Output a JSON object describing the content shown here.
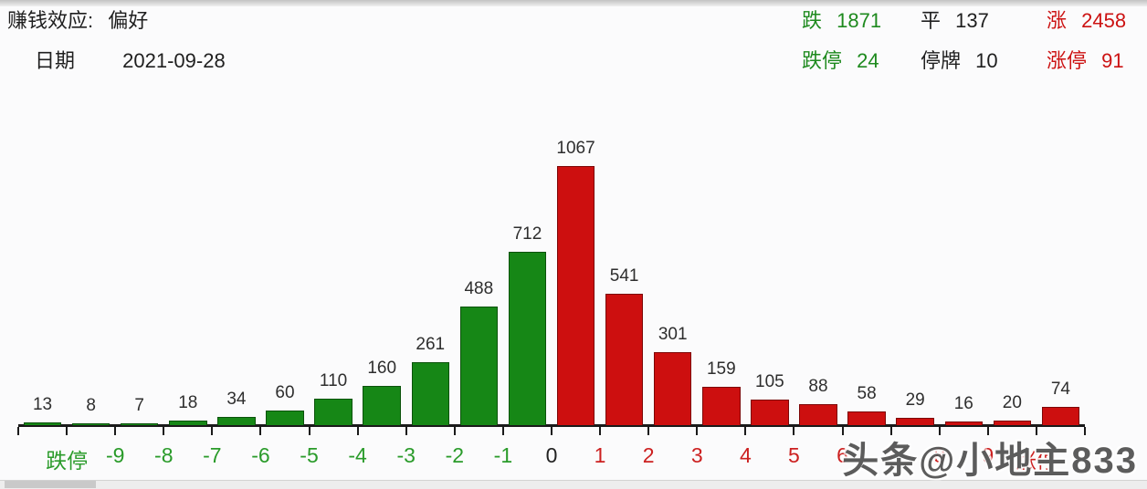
{
  "header": {
    "effect_label": "赚钱效应:",
    "effect_value": "偏好",
    "date_label": "日期",
    "date_value": "2021-09-28",
    "stats": [
      {
        "label": "跌",
        "value": "1871",
        "color": "green"
      },
      {
        "label": "平",
        "value": "137",
        "color": "black"
      },
      {
        "label": "涨",
        "value": "2458",
        "color": "red"
      },
      {
        "label": "跌停",
        "value": "24",
        "color": "green"
      },
      {
        "label": "停牌",
        "value": "10",
        "color": "black"
      },
      {
        "label": "涨停",
        "value": "91",
        "color": "red"
      }
    ]
  },
  "chart_data": {
    "type": "bar",
    "title": "",
    "xlabel": "",
    "ylabel": "",
    "ylim": [
      0,
      1100
    ],
    "grid": false,
    "values": [
      13,
      8,
      7,
      18,
      34,
      60,
      110,
      160,
      261,
      488,
      712,
      1067,
      541,
      301,
      159,
      105,
      88,
      58,
      29,
      16,
      20,
      74
    ],
    "down_bar_count": 11,
    "boundary_labels": [
      "跌停",
      "-9",
      "-8",
      "-7",
      "-6",
      "-5",
      "-4",
      "-3",
      "-2",
      "-1",
      "0",
      "1",
      "2",
      "3",
      "4",
      "5",
      "6",
      "7",
      "8",
      "9",
      "涨停"
    ],
    "colors": {
      "down_bar": "#168716",
      "up_bar": "#cd0f0f",
      "down_label": "#2a9b2a",
      "up_label": "#cc2020",
      "zero_label": "#222222",
      "value_label": "#2e2e2e"
    }
  },
  "watermark": {
    "text": "头条@小地主833"
  }
}
